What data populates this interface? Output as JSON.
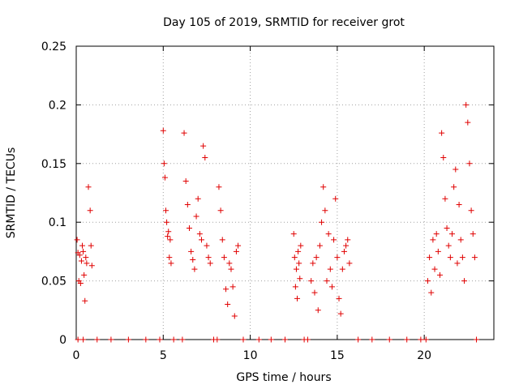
{
  "chart_data": {
    "type": "scatter",
    "title": "Day 105 of 2019, SRMTID for receiver grot",
    "xlabel": "GPS time / hours",
    "ylabel": "SRMTID / TECUs",
    "xlim": [
      0,
      24
    ],
    "ylim": [
      0,
      0.25
    ],
    "x_ticks": [
      0,
      5,
      10,
      15,
      20
    ],
    "x_tick_labels": [
      "0",
      "5",
      "10",
      "15",
      "20"
    ],
    "y_ticks": [
      0,
      0.05,
      0.1,
      0.15,
      0.2,
      0.25
    ],
    "y_tick_labels": [
      "0",
      "0.05",
      "0.1",
      "0.15",
      "0.2",
      "0.25"
    ],
    "grid": true,
    "marker": "+",
    "marker_color": "#e00000",
    "series": [
      {
        "name": "SRMTID",
        "x": [
          0.05,
          0.1,
          0.15,
          0.2,
          0.25,
          0.3,
          0.35,
          0.4,
          0.45,
          0.5,
          0.55,
          0.6,
          0.7,
          0.8,
          0.85,
          0.9,
          5.0,
          5.05,
          5.1,
          5.15,
          5.2,
          5.25,
          5.3,
          5.35,
          5.4,
          5.45,
          6.2,
          6.3,
          6.4,
          6.5,
          6.6,
          6.7,
          6.8,
          6.9,
          7.0,
          7.1,
          7.2,
          7.3,
          7.4,
          7.5,
          7.6,
          7.7,
          8.2,
          8.3,
          8.4,
          8.5,
          8.6,
          8.7,
          8.8,
          8.9,
          9.0,
          9.1,
          9.2,
          9.3,
          12.5,
          12.55,
          12.6,
          12.65,
          12.7,
          12.75,
          12.8,
          12.85,
          12.9,
          13.5,
          13.6,
          13.7,
          13.8,
          13.9,
          14.0,
          14.1,
          14.2,
          14.3,
          14.4,
          14.5,
          14.6,
          14.7,
          14.8,
          14.9,
          15.0,
          15.1,
          15.2,
          15.3,
          15.4,
          15.5,
          15.6,
          15.7,
          20.2,
          20.3,
          20.4,
          20.5,
          20.6,
          20.7,
          20.8,
          20.9,
          21.0,
          21.1,
          21.2,
          21.3,
          21.4,
          21.5,
          21.6,
          21.7,
          21.8,
          21.9,
          22.0,
          22.1,
          22.2,
          22.3,
          22.4,
          22.5,
          22.6,
          22.7,
          22.8,
          22.9,
          0.1,
          0.4,
          1.2,
          2.0,
          3.0,
          4.0,
          4.8,
          5.6,
          6.1,
          7.9,
          8.1,
          9.6,
          10.5,
          11.2,
          12.0,
          13.1,
          13.3,
          16.2,
          17.0,
          18.0,
          19.0,
          19.8,
          20.1,
          23.0
        ],
        "y": [
          0.085,
          0.074,
          0.05,
          0.072,
          0.048,
          0.067,
          0.08,
          0.075,
          0.055,
          0.033,
          0.07,
          0.065,
          0.13,
          0.11,
          0.08,
          0.063,
          0.178,
          0.15,
          0.138,
          0.11,
          0.1,
          0.088,
          0.092,
          0.07,
          0.085,
          0.065,
          0.176,
          0.135,
          0.115,
          0.095,
          0.075,
          0.068,
          0.06,
          0.105,
          0.12,
          0.09,
          0.085,
          0.165,
          0.155,
          0.08,
          0.07,
          0.065,
          0.13,
          0.11,
          0.085,
          0.07,
          0.043,
          0.03,
          0.065,
          0.06,
          0.045,
          0.02,
          0.075,
          0.08,
          0.09,
          0.07,
          0.045,
          0.06,
          0.035,
          0.075,
          0.065,
          0.052,
          0.08,
          0.05,
          0.065,
          0.04,
          0.07,
          0.025,
          0.08,
          0.1,
          0.13,
          0.11,
          0.05,
          0.09,
          0.06,
          0.045,
          0.085,
          0.12,
          0.07,
          0.035,
          0.022,
          0.06,
          0.075,
          0.08,
          0.085,
          0.065,
          0.05,
          0.07,
          0.04,
          0.085,
          0.06,
          0.09,
          0.075,
          0.055,
          0.176,
          0.155,
          0.12,
          0.095,
          0.08,
          0.07,
          0.09,
          0.13,
          0.145,
          0.065,
          0.115,
          0.085,
          0.07,
          0.05,
          0.2,
          0.185,
          0.15,
          0.11,
          0.09,
          0.07,
          0,
          0,
          0,
          0,
          0,
          0,
          0,
          0,
          0,
          0,
          0,
          0,
          0,
          0,
          0,
          0,
          0,
          0,
          0,
          0,
          0,
          0,
          0,
          0
        ]
      }
    ]
  }
}
